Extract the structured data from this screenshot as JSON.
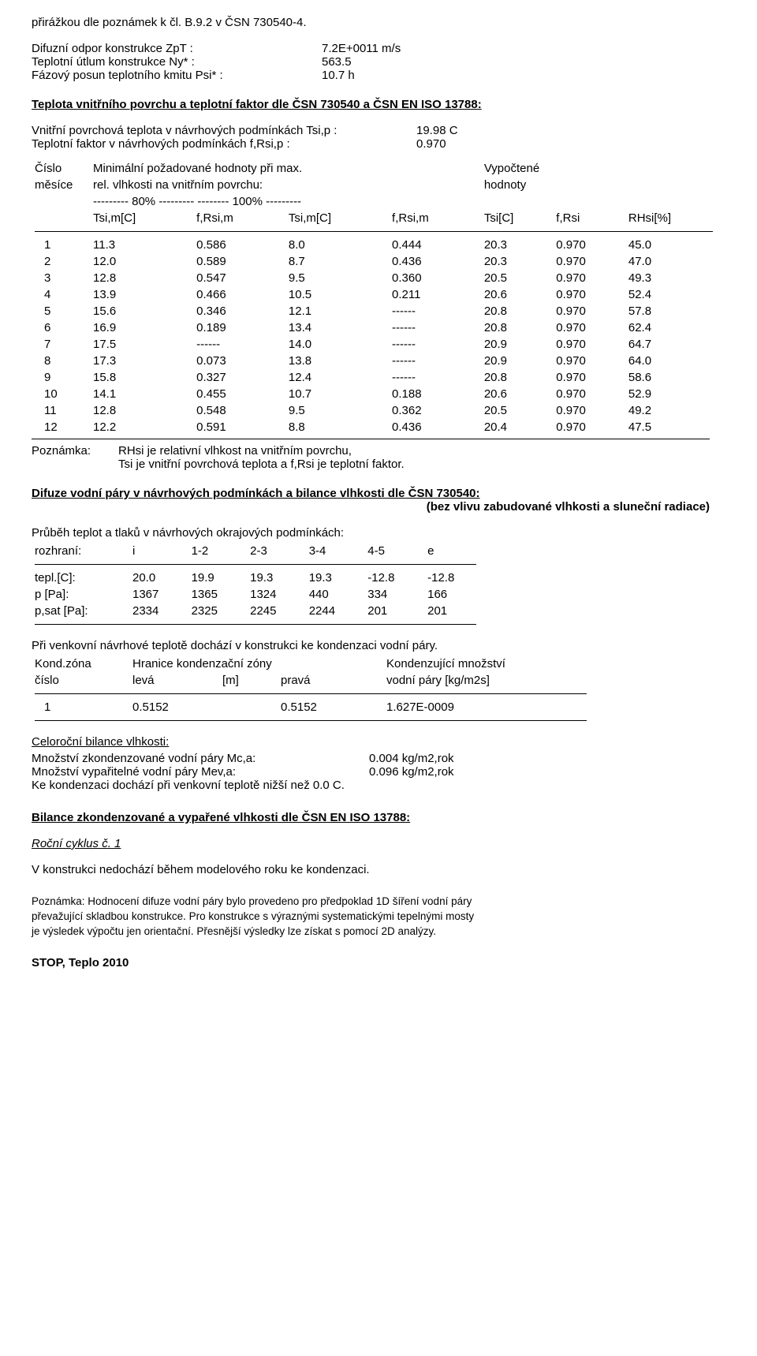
{
  "top_line": "přirážkou dle poznámek k čl. B.9.2 v ČSN 730540-4.",
  "kv1": {
    "rows": [
      {
        "label": "Difuzní odpor konstrukce ZpT :",
        "val": "7.2E+0011 m/s"
      },
      {
        "label": "Teplotní útlum konstrukce Ny* :",
        "val": "563.5"
      },
      {
        "label": "Fázový posun teplotního kmitu Psi* :",
        "val": "10.7 h"
      }
    ]
  },
  "sec1_heading": "Teplota vnitřního povrchu a teplotní faktor dle ČSN 730540 a ČSN EN ISO 13788:",
  "kv2": {
    "rows": [
      {
        "label": "Vnitřní povrchová teplota v návrhových podmínkách Tsi,p :",
        "val": "19.98 C"
      },
      {
        "label": "Teplotní faktor v návrhových podmínkách f,Rsi,p :",
        "val": "0.970"
      }
    ]
  },
  "hdr": {
    "l1_a": "Číslo",
    "l1_b": "Minimální požadované hodnoty při max.",
    "l1_c": "Vypočtené",
    "l2_a": "měsíce",
    "l2_b": "rel. vlhkosti na vnitřním povrchu:",
    "l2_c": "hodnoty",
    "l3": "--------- 80% ---------   -------- 100% ---------",
    "cols": [
      "",
      "Tsi,m[C]",
      "f,Rsi,m",
      "Tsi,m[C]",
      "f,Rsi,m",
      "Tsi[C]",
      "f,Rsi",
      "RHsi[%]"
    ]
  },
  "months": [
    [
      "1",
      "11.3",
      "0.586",
      "8.0",
      "0.444",
      "20.3",
      "0.970",
      "45.0"
    ],
    [
      "2",
      "12.0",
      "0.589",
      "8.7",
      "0.436",
      "20.3",
      "0.970",
      "47.0"
    ],
    [
      "3",
      "12.8",
      "0.547",
      "9.5",
      "0.360",
      "20.5",
      "0.970",
      "49.3"
    ],
    [
      "4",
      "13.9",
      "0.466",
      "10.5",
      "0.211",
      "20.6",
      "0.970",
      "52.4"
    ],
    [
      "5",
      "15.6",
      "0.346",
      "12.1",
      "------",
      "20.8",
      "0.970",
      "57.8"
    ],
    [
      "6",
      "16.9",
      "0.189",
      "13.4",
      "------",
      "20.8",
      "0.970",
      "62.4"
    ],
    [
      "7",
      "17.5",
      "------",
      "14.0",
      "------",
      "20.9",
      "0.970",
      "64.7"
    ],
    [
      "8",
      "17.3",
      "0.073",
      "13.8",
      "------",
      "20.9",
      "0.970",
      "64.0"
    ],
    [
      "9",
      "15.8",
      "0.327",
      "12.4",
      "------",
      "20.8",
      "0.970",
      "58.6"
    ],
    [
      "10",
      "14.1",
      "0.455",
      "10.7",
      "0.188",
      "20.6",
      "0.970",
      "52.9"
    ],
    [
      "11",
      "12.8",
      "0.548",
      "9.5",
      "0.362",
      "20.5",
      "0.970",
      "49.2"
    ],
    [
      "12",
      "12.2",
      "0.591",
      "8.8",
      "0.436",
      "20.4",
      "0.970",
      "47.5"
    ]
  ],
  "note1": {
    "label": "Poznámka:",
    "l1": "RHsi je relativní vlhkost na vnitřním povrchu,",
    "l2": "Tsi je vnitřní povrchová teplota a f,Rsi je teplotní faktor."
  },
  "sec2_heading_l1": "Difuze vodní páry v návrhových podmínkách a bilance vlhkosti dle ČSN 730540:",
  "sec2_heading_l2": "(bez vlivu zabudované vlhkosti a sluneční radiace)",
  "profile": {
    "title": "Průběh teplot a tlaků v návrhových okrajových podmínkách:",
    "cols": [
      "rozhraní:",
      "i",
      "1-2",
      "2-3",
      "3-4",
      "4-5",
      "e"
    ],
    "rows": [
      [
        "tepl.[C]:",
        "20.0",
        "19.9",
        "19.3",
        "19.3",
        "-12.8",
        "-12.8"
      ],
      [
        "p [Pa]:",
        "1367",
        "1365",
        "1324",
        "440",
        "334",
        "166"
      ],
      [
        "p,sat [Pa]:",
        "2334",
        "2325",
        "2245",
        "2244",
        "201",
        "201"
      ]
    ]
  },
  "cond_line": "Při venkovní návrhové teplotě dochází v konstrukci ke kondenzaci vodní páry.",
  "cond_table": {
    "h1": [
      "Kond.zóna",
      "Hranice kondenzační zóny",
      "",
      "Kondenzující množství"
    ],
    "h2": [
      "číslo",
      "levá",
      "[m]",
      "pravá",
      "vodní páry [kg/m2s]"
    ],
    "row": [
      "1",
      "0.5152",
      "",
      "0.5152",
      "1.627E-0009"
    ]
  },
  "balance": {
    "title": "Celoroční bilance vlhkosti:",
    "rows": [
      {
        "label": "Množství zkondenzované vodní páry Mc,a:",
        "val": "0.004 kg/m2,rok"
      },
      {
        "label": "Množství vypařitelné vodní páry Mev,a:",
        "val": "0.096 kg/m2,rok"
      }
    ],
    "line3": "Ke kondenzaci dochází při venkovní teplotě nižší než  0.0 C."
  },
  "sec3_heading": "Bilance zkondenzované a vypařené vlhkosti dle ČSN EN ISO 13788:",
  "cycle": "Roční cyklus č.  1",
  "cycle_line": "V konstrukci nedochází během modelového roku ke kondenzaci.",
  "note2": {
    "l1": "Poznámka: Hodnocení difuze vodní páry bylo provedeno pro předpoklad 1D šíření vodní páry",
    "l2": "převažující skladbou konstrukce. Pro konstrukce s výraznými systematickými tepelnými mosty",
    "l3": "je výsledek výpočtu jen orientační. Přesnější výsledky lze získat s pomocí 2D analýzy."
  },
  "footer": "STOP, Teplo 2010"
}
